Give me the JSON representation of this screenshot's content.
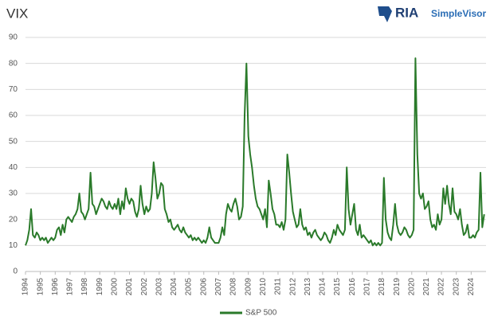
{
  "chart_data": {
    "type": "line",
    "title": "VIX",
    "logo": "RIA",
    "logo_sub": "SimpleVisor",
    "x": [
      1994,
      1994.125,
      1994.25,
      1994.375,
      1994.5,
      1994.625,
      1994.75,
      1994.875,
      1995,
      1995.125,
      1995.25,
      1995.375,
      1995.5,
      1995.625,
      1995.75,
      1995.875,
      1996,
      1996.125,
      1996.25,
      1996.375,
      1996.5,
      1996.625,
      1996.75,
      1996.875,
      1997,
      1997.125,
      1997.25,
      1997.375,
      1997.5,
      1997.625,
      1997.75,
      1997.875,
      1998,
      1998.125,
      1998.25,
      1998.375,
      1998.5,
      1998.625,
      1998.75,
      1998.875,
      1999,
      1999.125,
      1999.25,
      1999.375,
      1999.5,
      1999.625,
      1999.75,
      1999.875,
      2000,
      2000.125,
      2000.25,
      2000.375,
      2000.5,
      2000.625,
      2000.75,
      2000.875,
      2001,
      2001.125,
      2001.25,
      2001.375,
      2001.5,
      2001.625,
      2001.75,
      2001.875,
      2002,
      2002.125,
      2002.25,
      2002.375,
      2002.5,
      2002.625,
      2002.75,
      2002.875,
      2003,
      2003.125,
      2003.25,
      2003.375,
      2003.5,
      2003.625,
      2003.75,
      2003.875,
      2004,
      2004.125,
      2004.25,
      2004.375,
      2004.5,
      2004.625,
      2004.75,
      2004.875,
      2005,
      2005.125,
      2005.25,
      2005.375,
      2005.5,
      2005.625,
      2005.75,
      2005.875,
      2006,
      2006.125,
      2006.25,
      2006.375,
      2006.5,
      2006.625,
      2006.75,
      2006.875,
      2007,
      2007.125,
      2007.25,
      2007.375,
      2007.5,
      2007.625,
      2007.75,
      2007.875,
      2008,
      2008.125,
      2008.25,
      2008.375,
      2008.5,
      2008.625,
      2008.75,
      2008.875,
      2009,
      2009.125,
      2009.25,
      2009.375,
      2009.5,
      2009.625,
      2009.75,
      2009.875,
      2010,
      2010.125,
      2010.25,
      2010.375,
      2010.5,
      2010.625,
      2010.75,
      2010.875,
      2011,
      2011.125,
      2011.25,
      2011.375,
      2011.5,
      2011.625,
      2011.75,
      2011.875,
      2012,
      2012.125,
      2012.25,
      2012.375,
      2012.5,
      2012.625,
      2012.75,
      2012.875,
      2013,
      2013.125,
      2013.25,
      2013.375,
      2013.5,
      2013.625,
      2013.75,
      2013.875,
      2014,
      2014.125,
      2014.25,
      2014.375,
      2014.5,
      2014.625,
      2014.75,
      2014.875,
      2015,
      2015.125,
      2015.25,
      2015.375,
      2015.5,
      2015.625,
      2015.75,
      2015.875,
      2016,
      2016.125,
      2016.25,
      2016.375,
      2016.5,
      2016.625,
      2016.75,
      2016.875,
      2017,
      2017.125,
      2017.25,
      2017.375,
      2017.5,
      2017.625,
      2017.75,
      2017.875,
      2018,
      2018.125,
      2018.25,
      2018.375,
      2018.5,
      2018.625,
      2018.75,
      2018.875,
      2019,
      2019.125,
      2019.25,
      2019.375,
      2019.5,
      2019.625,
      2019.75,
      2019.875,
      2020,
      2020.125,
      2020.25,
      2020.375,
      2020.5,
      2020.625,
      2020.75,
      2020.875,
      2021,
      2021.125,
      2021.25,
      2021.375,
      2021.5,
      2021.625,
      2021.75,
      2021.875,
      2022,
      2022.125,
      2022.25,
      2022.375,
      2022.5,
      2022.625,
      2022.75,
      2022.875,
      2023,
      2023.125,
      2023.25,
      2023.375,
      2023.5,
      2023.625,
      2023.75,
      2023.875,
      2024,
      2024.125,
      2024.25,
      2024.375,
      2024.5,
      2024.625,
      2024.75,
      2024.875
    ],
    "series": [
      {
        "name": "S&P 500",
        "color": "#2a7a2a",
        "values": [
          10,
          12,
          16,
          24,
          14,
          13,
          15,
          14,
          12,
          13,
          12,
          13,
          11,
          12,
          13,
          12,
          13,
          16,
          17,
          14,
          18,
          15,
          20,
          21,
          20,
          19,
          21,
          22,
          24,
          30,
          23,
          22,
          20,
          22,
          24,
          38,
          26,
          25,
          22,
          24,
          26,
          28,
          27,
          25,
          24,
          27,
          25,
          24,
          26,
          24,
          28,
          22,
          27,
          24,
          32,
          28,
          26,
          28,
          27,
          23,
          21,
          24,
          33,
          26,
          22,
          25,
          23,
          24,
          30,
          42,
          36,
          28,
          30,
          34,
          33,
          24,
          22,
          19,
          20,
          17,
          16,
          17,
          18,
          16,
          15,
          17,
          15,
          14,
          13,
          14,
          12,
          13,
          12,
          13,
          12,
          11,
          12,
          11,
          13,
          17,
          13,
          12,
          11,
          11,
          11,
          13,
          17,
          14,
          22,
          26,
          24,
          23,
          26,
          28,
          25,
          20,
          21,
          25,
          60,
          80,
          52,
          45,
          40,
          33,
          28,
          25,
          24,
          22,
          20,
          24,
          17,
          35,
          30,
          24,
          22,
          18,
          18,
          17,
          19,
          16,
          20,
          45,
          38,
          30,
          23,
          20,
          17,
          18,
          24,
          18,
          16,
          17,
          14,
          15,
          13,
          15,
          16,
          14,
          13,
          12,
          13,
          15,
          14,
          12,
          11,
          13,
          16,
          14,
          18,
          16,
          15,
          14,
          16,
          40,
          24,
          18,
          22,
          26,
          16,
          14,
          18,
          13,
          14,
          13,
          12,
          11,
          12,
          10,
          11,
          10,
          11,
          10,
          11,
          36,
          20,
          15,
          13,
          12,
          18,
          26,
          18,
          15,
          14,
          15,
          17,
          16,
          14,
          13,
          14,
          16,
          82,
          45,
          30,
          28,
          30,
          24,
          25,
          27,
          20,
          17,
          18,
          16,
          22,
          18,
          20,
          32,
          26,
          33,
          26,
          22,
          32,
          23,
          22,
          20,
          24,
          18,
          14,
          15,
          18,
          13,
          13,
          14,
          13,
          15,
          16,
          38,
          17,
          22
        ]
      }
    ],
    "xlim": [
      1994,
      2025
    ],
    "xticks": [
      1994,
      1995,
      1996,
      1997,
      1998,
      1999,
      2000,
      2001,
      2002,
      2003,
      2004,
      2005,
      2006,
      2007,
      2008,
      2009,
      2010,
      2011,
      2012,
      2013,
      2014,
      2015,
      2016,
      2017,
      2018,
      2019,
      2020,
      2021,
      2022,
      2023,
      2024
    ],
    "ylim": [
      0,
      90
    ],
    "yticks": [
      0,
      10,
      20,
      30,
      40,
      50,
      60,
      70,
      80,
      90
    ],
    "grid": true
  }
}
